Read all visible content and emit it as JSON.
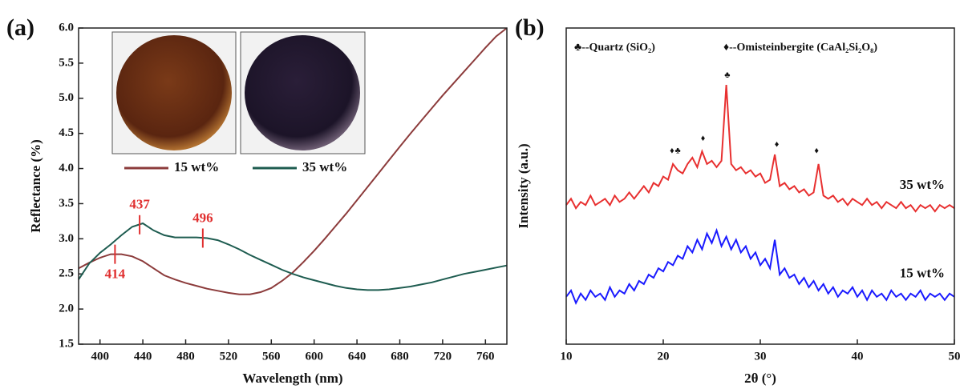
{
  "chart_data": [
    {
      "type": "line",
      "panel_label": "(a)",
      "x_label": "Wavelength (nm)",
      "y_label": "Reflectance (%)",
      "xlim": [
        380,
        780
      ],
      "ylim": [
        1.5,
        6.0
      ],
      "xticks": [
        400,
        440,
        480,
        520,
        560,
        600,
        640,
        680,
        720,
        760
      ],
      "yticks": [
        1.5,
        {
          "value": 2,
          "label": "2.0"
        },
        2.5,
        {
          "value": 3,
          "label": "3.0"
        },
        3.5,
        {
          "value": 4,
          "label": "4.0"
        },
        4.5,
        {
          "value": 5,
          "label": "5.0"
        },
        5.5,
        {
          "value": 6,
          "label": "6.0"
        }
      ],
      "legend": "top",
      "x": [
        380,
        390,
        400,
        410,
        420,
        430,
        440,
        450,
        460,
        470,
        480,
        490,
        500,
        510,
        520,
        530,
        540,
        550,
        560,
        570,
        580,
        590,
        600,
        610,
        620,
        630,
        640,
        650,
        660,
        670,
        680,
        690,
        700,
        710,
        720,
        730,
        740,
        750,
        760,
        770,
        780
      ],
      "series": [
        {
          "name": "15 wt%",
          "color": "#8c3b3b",
          "values": [
            2.58,
            2.66,
            2.73,
            2.78,
            2.78,
            2.75,
            2.68,
            2.58,
            2.48,
            2.42,
            2.37,
            2.33,
            2.29,
            2.26,
            2.23,
            2.21,
            2.21,
            2.24,
            2.3,
            2.4,
            2.52,
            2.67,
            2.83,
            3.0,
            3.18,
            3.36,
            3.55,
            3.74,
            3.93,
            4.12,
            4.31,
            4.5,
            4.68,
            4.86,
            5.04,
            5.21,
            5.38,
            5.55,
            5.72,
            5.88,
            6.0
          ]
        },
        {
          "name": "35 wt%",
          "color": "#1e5c50",
          "values": [
            2.42,
            2.65,
            2.8,
            2.92,
            3.05,
            3.17,
            3.22,
            3.12,
            3.05,
            3.02,
            3.02,
            3.02,
            3.01,
            2.98,
            2.92,
            2.85,
            2.77,
            2.7,
            2.63,
            2.56,
            2.5,
            2.45,
            2.41,
            2.37,
            2.33,
            2.3,
            2.28,
            2.27,
            2.27,
            2.28,
            2.3,
            2.32,
            2.35,
            2.38,
            2.42,
            2.46,
            2.5,
            2.53,
            2.56,
            2.59,
            2.62
          ]
        }
      ],
      "annotations": [
        {
          "x": 437,
          "y": 3.2,
          "position": "above",
          "color": "#e03030"
        },
        {
          "x": 496,
          "y": 3.01,
          "position": "above",
          "color": "#e03030"
        },
        {
          "x": 414,
          "y": 2.78,
          "position": "below",
          "color": "#e03030"
        }
      ]
    },
    {
      "type": "line",
      "panel_label": "(b)",
      "x_label": "2θ (°)",
      "y_label": "Intensity (a.u.)",
      "xlim": [
        10,
        50
      ],
      "ylim": [
        0,
        100
      ],
      "xticks": [
        10,
        20,
        30,
        40,
        50
      ],
      "phase_legend": [
        "♣--Quartz (SiO₂)",
        "♦--Omisteinbergite (CaAl₂Si₂O₈)"
      ],
      "x": [
        10,
        10.5,
        11,
        11.5,
        12,
        12.5,
        13,
        13.5,
        14,
        14.5,
        15,
        15.5,
        16,
        16.5,
        17,
        17.5,
        18,
        18.5,
        19,
        19.5,
        20,
        20.5,
        21,
        21.5,
        22,
        22.5,
        23,
        23.5,
        24,
        24.5,
        25,
        25.5,
        26,
        26.5,
        27,
        27.5,
        28,
        28.5,
        29,
        29.5,
        30,
        30.5,
        31,
        31.5,
        32,
        32.5,
        33,
        33.5,
        34,
        34.5,
        35,
        35.5,
        36,
        36.5,
        37,
        37.5,
        38,
        38.5,
        39,
        39.5,
        40,
        40.5,
        41,
        41.5,
        42,
        42.5,
        43,
        43.5,
        44,
        44.5,
        45,
        45.5,
        46,
        46.5,
        47,
        47.5,
        48,
        48.5,
        49,
        49.5,
        50
      ],
      "series": [
        {
          "name": "35 wt%",
          "color": "#e83030",
          "values": [
            44,
            46,
            43,
            45,
            44,
            47,
            44,
            45,
            46,
            44,
            47,
            45,
            46,
            48,
            46,
            48,
            50,
            48,
            51,
            50,
            53,
            52,
            57,
            55,
            54,
            57,
            59,
            56,
            61,
            57,
            58,
            56,
            58,
            82,
            57,
            55,
            56,
            54,
            55,
            53,
            54,
            51,
            52,
            60,
            50,
            51,
            49,
            50,
            48,
            49,
            47,
            48,
            57,
            47,
            46,
            47,
            45,
            46,
            44,
            46,
            45,
            44,
            46,
            44,
            45,
            43,
            45,
            44,
            43,
            45,
            43,
            44,
            42,
            44,
            43,
            44,
            42,
            44,
            43,
            44,
            43
          ]
        },
        {
          "name": "15 wt%",
          "color": "#1a1aff",
          "values": [
            15,
            17,
            13,
            16,
            14,
            17,
            15,
            16,
            14,
            18,
            15,
            17,
            16,
            19,
            17,
            20,
            19,
            22,
            21,
            24,
            23,
            26,
            25,
            28,
            27,
            31,
            29,
            33,
            30,
            35,
            32,
            36,
            31,
            34,
            30,
            33,
            29,
            31,
            27,
            29,
            25,
            27,
            24,
            33,
            22,
            24,
            21,
            22,
            19,
            21,
            18,
            20,
            17,
            19,
            16,
            18,
            15,
            17,
            16,
            18,
            15,
            17,
            14,
            17,
            15,
            16,
            14,
            17,
            15,
            16,
            14,
            16,
            15,
            17,
            14,
            16,
            15,
            16,
            14,
            16,
            15
          ]
        }
      ],
      "markers": [
        {
          "x": 20.9,
          "y": 61,
          "symbol": "♦"
        },
        {
          "x": 21.5,
          "y": 61,
          "symbol": "♣"
        },
        {
          "x": 24.1,
          "y": 65,
          "symbol": "♦"
        },
        {
          "x": 26.6,
          "y": 85,
          "symbol": "♣"
        },
        {
          "x": 31.7,
          "y": 63,
          "symbol": "♦"
        },
        {
          "x": 35.8,
          "y": 61,
          "symbol": "♦"
        }
      ]
    }
  ]
}
